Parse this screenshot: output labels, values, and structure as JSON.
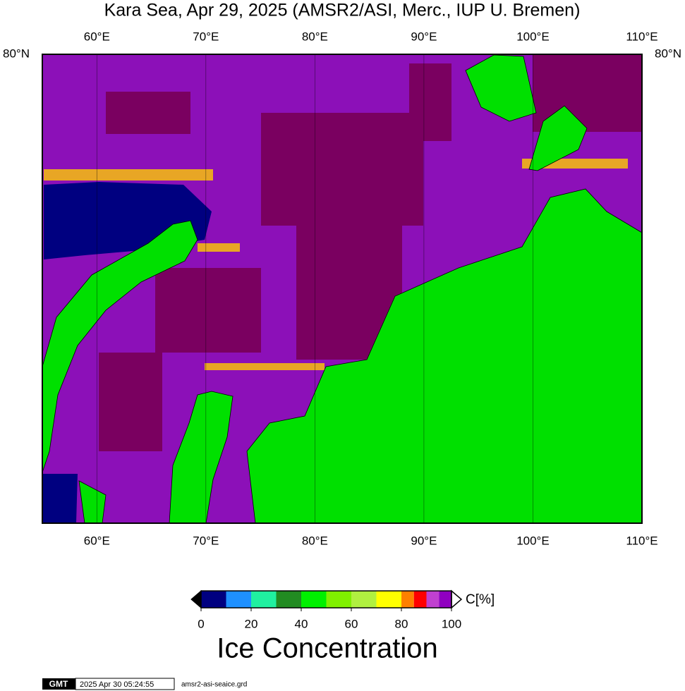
{
  "title": "Kara Sea, Apr 29, 2025 (AMSR2/ASI, Merc., IUP U. Bremen)",
  "map": {
    "lonlim": [
      55,
      110
    ],
    "latlim": [
      73,
      80
    ],
    "lonticks": [
      {
        "value": 60,
        "label": "60°E"
      },
      {
        "value": 70,
        "label": "70°E"
      },
      {
        "value": 80,
        "label": "80°E"
      },
      {
        "value": 90,
        "label": "90°E"
      },
      {
        "value": 100,
        "label": "100°E"
      },
      {
        "value": 110,
        "label": "110°E"
      }
    ],
    "latticks": [
      {
        "value": 80,
        "label": "80°N"
      }
    ]
  },
  "colorbar": {
    "label": "C[%]",
    "title": "Ice Concentration",
    "lim": [
      0,
      100
    ],
    "ticks": [
      0,
      20,
      40,
      60,
      80,
      100
    ],
    "bounds": [
      0,
      10,
      20,
      30,
      40,
      50,
      60,
      70,
      80,
      85,
      90,
      95,
      100
    ],
    "colors": [
      "#000080",
      "#1e90ff",
      "#20f0a0",
      "#228b22",
      "#00f000",
      "#80f000",
      "#b0f040",
      "#ffff00",
      "#ff8000",
      "#ff0000",
      "#c040d0",
      "#9000c0"
    ]
  },
  "footer": {
    "logo": "GMT",
    "timestamp": "2025 Apr 30 05:24:55",
    "file": "amsr2-asi-seaice.grd"
  }
}
